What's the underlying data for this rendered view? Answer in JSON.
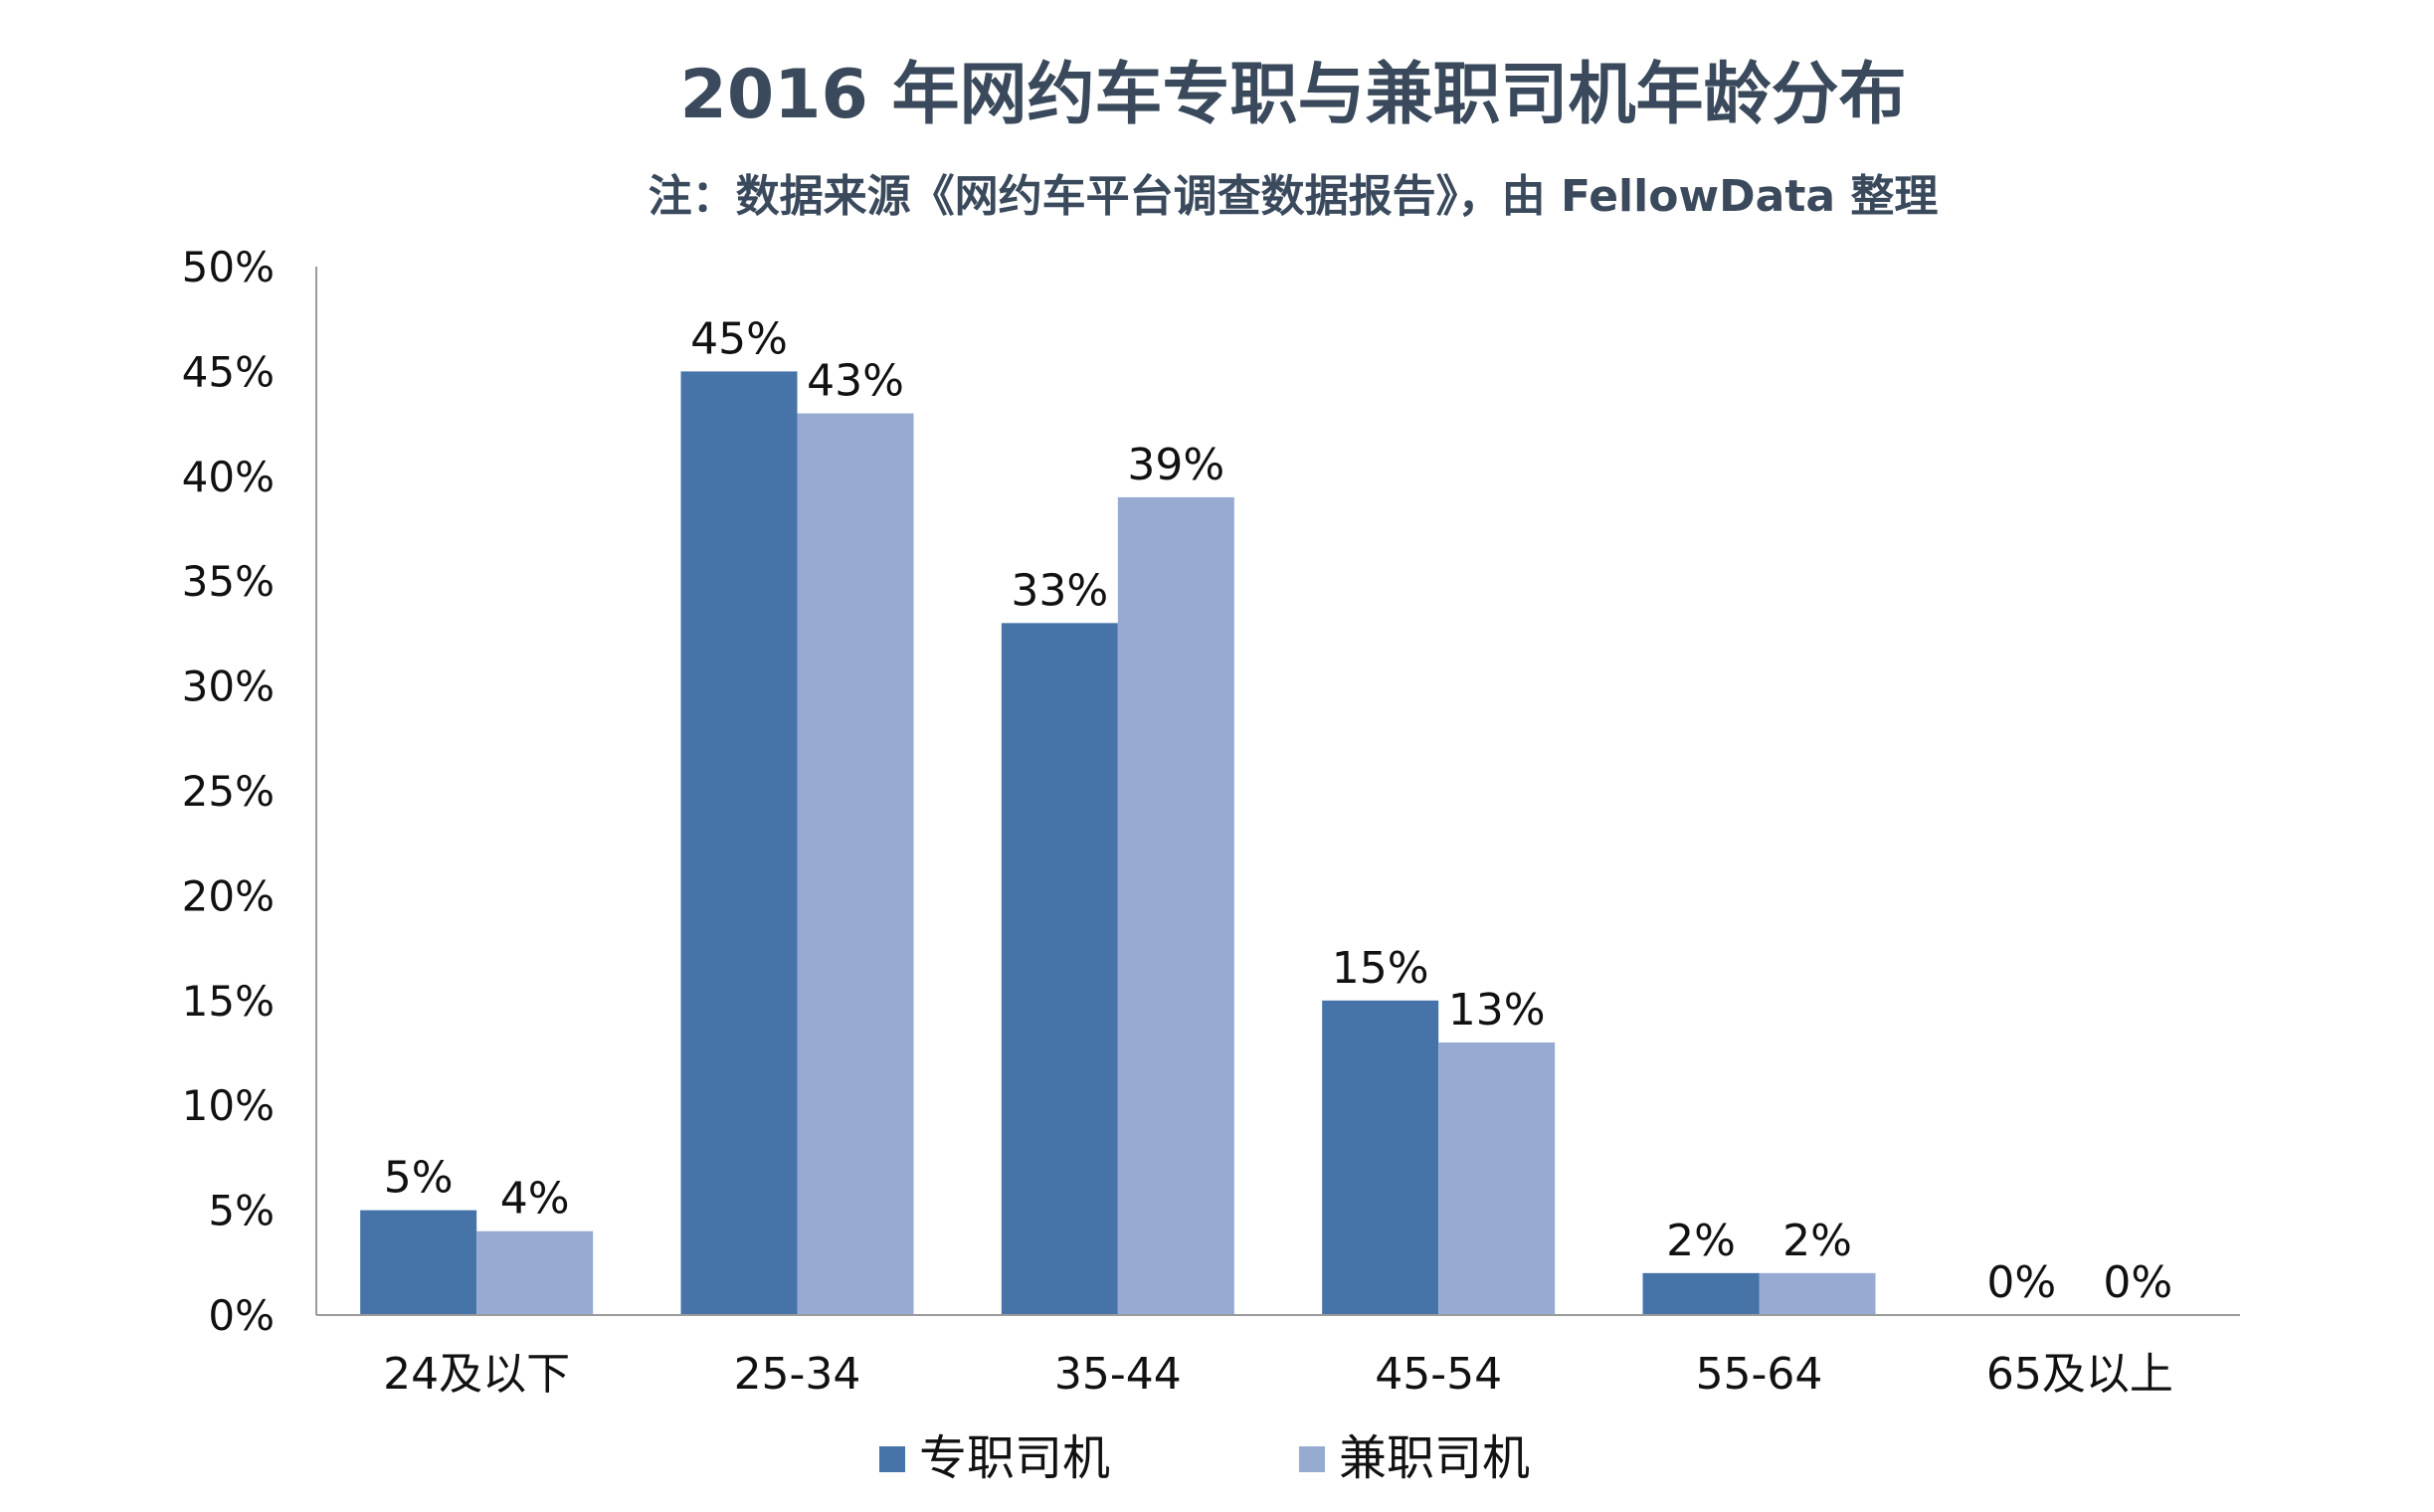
{
  "chart_data": {
    "type": "bar",
    "title": "2016 年网约车专职与兼职司机年龄分布",
    "subtitle": "注：数据来源《网约车平台调查数据报告》，由 FellowData 整理",
    "categories": [
      "24及以下",
      "25-34",
      "35-44",
      "45-54",
      "55-64",
      "65及以上"
    ],
    "series": [
      {
        "name": "专职司机",
        "color": "#4674a9",
        "values": [
          5,
          45,
          33,
          15,
          2,
          0
        ],
        "labels": [
          "5%",
          "45%",
          "33%",
          "15%",
          "2%",
          "0%"
        ]
      },
      {
        "name": "兼职司机",
        "color": "#97abd2",
        "values": [
          4,
          43,
          39,
          13,
          2,
          0
        ],
        "labels": [
          "4%",
          "43%",
          "39%",
          "13%",
          "2%",
          "0%"
        ]
      }
    ],
    "ylim": [
      0,
      50
    ],
    "yticks": [
      0,
      5,
      10,
      15,
      20,
      25,
      30,
      35,
      40,
      45,
      50
    ],
    "ytick_labels": [
      "0%",
      "5%",
      "10%",
      "15%",
      "20%",
      "25%",
      "30%",
      "35%",
      "40%",
      "45%",
      "50%"
    ],
    "xlabel": "",
    "ylabel": "",
    "grid": false,
    "legend": "bottom-center"
  }
}
